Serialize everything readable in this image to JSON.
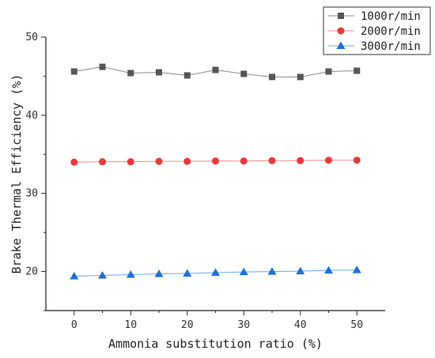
{
  "chart_data": {
    "type": "line",
    "xlabel": "Ammonia substitution ratio (%)",
    "ylabel": "Brake Thermal Efficiency (%)",
    "xlim": [
      -5,
      55
    ],
    "ylim": [
      15,
      50
    ],
    "xticks": [
      0,
      10,
      20,
      30,
      40,
      50
    ],
    "yticks": [
      20,
      30,
      40,
      50
    ],
    "x": [
      0,
      5,
      10,
      15,
      20,
      25,
      30,
      35,
      40,
      45,
      50
    ],
    "legend_position": "top-right",
    "grid": false,
    "series": [
      {
        "name": "1000r/min",
        "marker": "square",
        "color": "#555555",
        "line_color": "#8c8c8c",
        "values": [
          45.6,
          46.2,
          45.4,
          45.5,
          45.1,
          45.8,
          45.3,
          44.9,
          44.9,
          45.6,
          45.7
        ]
      },
      {
        "name": "2000r/min",
        "marker": "circle",
        "color": "#e8393b",
        "line_color": "#f08a8a",
        "values": [
          34.0,
          34.05,
          34.05,
          34.1,
          34.1,
          34.15,
          34.15,
          34.2,
          34.2,
          34.25,
          34.25
        ]
      },
      {
        "name": "3000r/min",
        "marker": "triangle",
        "color": "#1f6fd6",
        "line_color": "#6aa7ee",
        "values": [
          19.4,
          19.5,
          19.6,
          19.7,
          19.75,
          19.85,
          19.95,
          20.0,
          20.05,
          20.15,
          20.2
        ]
      }
    ]
  }
}
